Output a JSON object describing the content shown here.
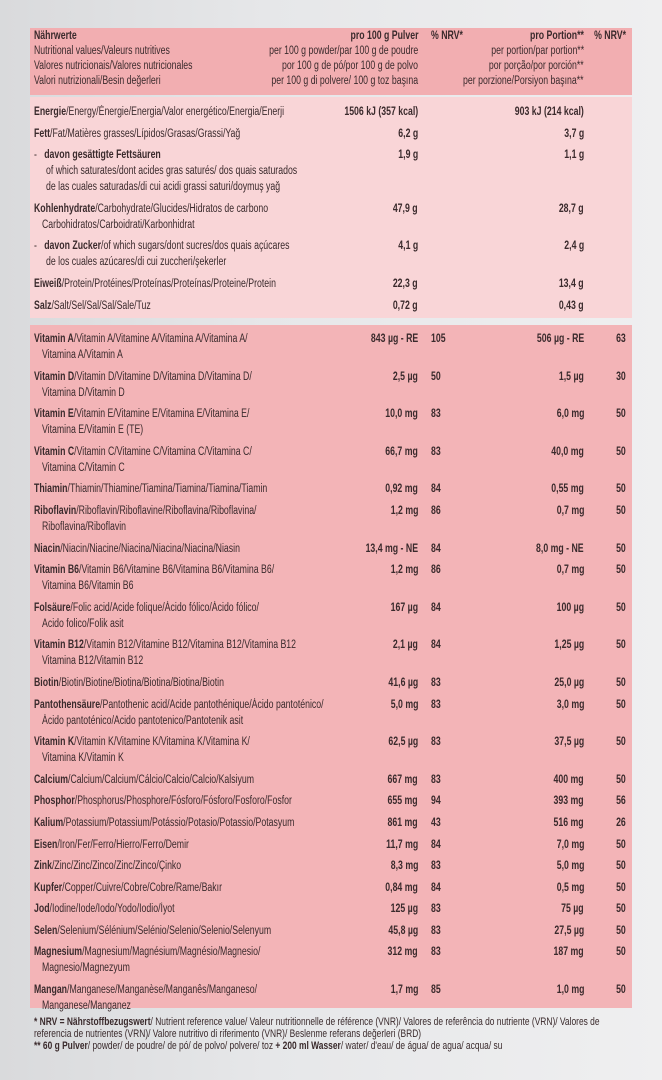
{
  "header": {
    "title": "Nährwerte",
    "col1_title": "pro 100 g Pulver",
    "nrv1_title": "% NRV*",
    "col2_title": "pro Portion**",
    "nrv2_title": "% NRV*",
    "subtitles": [
      {
        "label": "Nutritional values/Valeurs nutritives",
        "col1": "per 100 g powder/par 100 g de poudre",
        "col2": "per portion/par portion**"
      },
      {
        "label": "Valores nutricionais/Valores nutricionales",
        "col1": "por 100 g de pó/por 100 g de polvo",
        "col2": "por porção/por porción**"
      },
      {
        "label": "Valori nutrizionali/Besin değerleri",
        "col1": "per 100 g di polvere/ 100 g toz başına",
        "col2": "per porzione/Porsiyon başına**"
      }
    ]
  },
  "macros": [
    {
      "bold": "Energie",
      "rest": "/Energy/Énergie/Energia/Valor energético/Energia/Enerji",
      "lines": [],
      "v1": "1506 kJ (357 kcal)",
      "n1": "",
      "v2": "903 kJ (214 kcal)",
      "n2": ""
    },
    {
      "bold": "Fett",
      "rest": "/Fat/Matières grasses/Lípidos/Grasas/Grassi/Yağ",
      "lines": [],
      "v1": "6,2 g",
      "n1": "",
      "v2": "3,7 g",
      "n2": ""
    },
    {
      "dash": "-",
      "bold": "davon gesättigte Fettsäuren",
      "rest": "",
      "lines": [
        "of which saturates/dont acides gras saturés/ dos quais saturados",
        "de las cuales saturadas/di cui acidi grassi saturi/doymuş yağ"
      ],
      "v1": "1,9 g",
      "n1": "",
      "v2": "1,1 g",
      "n2": ""
    },
    {
      "bold": "Kohlenhydrate",
      "rest": "/Carbohydrate/Glucides/Hidratos de carbono",
      "lines": [
        "Carbohidratos/Carboidrati/Karbonhidrat"
      ],
      "v1": "47,9 g",
      "n1": "",
      "v2": "28,7 g",
      "n2": ""
    },
    {
      "dash": "-",
      "bold": "davon Zucker",
      "rest": "/of which sugars/dont sucres/dos quais açúcares",
      "lines": [
        "de los cuales azúcares/di cui zuccheri/şekerler"
      ],
      "v1": "4,1 g",
      "n1": "",
      "v2": "2,4 g",
      "n2": ""
    },
    {
      "bold": "Eiweiß",
      "rest": "/Protein/Protéines/Proteínas/Proteínas/Proteine/Protein",
      "lines": [],
      "v1": "22,3 g",
      "n1": "",
      "v2": "13,4 g",
      "n2": ""
    },
    {
      "bold": "Salz",
      "rest": "/Salt/Sel/Sal/Sal/Sale/Tuz",
      "lines": [],
      "v1": "0,72 g",
      "n1": "",
      "v2": "0,43 g",
      "n2": ""
    }
  ],
  "micros": [
    {
      "bold": "Vitamin A",
      "rest": "/Vitamin A/Vitamine A/Vitamina A/Vitamina A/",
      "lines": [
        "Vitamina A/Vitamin A"
      ],
      "v1": "843 µg - RE",
      "n1": "105",
      "v2": "506 µg - RE",
      "n2": "63"
    },
    {
      "bold": "Vitamin D",
      "rest": "/Vitamin D/Vitamine D/Vitamina D/Vitamina D/",
      "lines": [
        "Vitamina D/Vitamin D"
      ],
      "v1": "2,5 µg",
      "n1": "50",
      "v2": "1,5 µg",
      "n2": "30"
    },
    {
      "bold": "Vitamin E",
      "rest": "/Vitamin E/Vitamine E/Vitamina E/Vitamina E/",
      "lines": [
        "Vitamina E/Vitamin E (TE)"
      ],
      "v1": "10,0 mg",
      "n1": "83",
      "v2": "6,0 mg",
      "n2": "50"
    },
    {
      "bold": "Vitamin C",
      "rest": "/Vitamin C/Vitamine C/Vitamina C/Vitamina C/",
      "lines": [
        "Vitamina C/Vitamin C"
      ],
      "v1": "66,7 mg",
      "n1": "83",
      "v2": "40,0 mg",
      "n2": "50"
    },
    {
      "bold": "Thiamin",
      "rest": "/Thiamin/Thiamine/Tiamina/Tiamina/Tiamina/Tiamin",
      "lines": [],
      "v1": "0,92 mg",
      "n1": "84",
      "v2": "0,55 mg",
      "n2": "50"
    },
    {
      "bold": "Riboflavin",
      "rest": "/Riboflavin/Riboflavine/Riboflavina/Riboflavina/",
      "lines": [
        "Riboflavina/Riboflavin"
      ],
      "v1": "1,2 mg",
      "n1": "86",
      "v2": "0,7 mg",
      "n2": "50"
    },
    {
      "bold": "Niacin",
      "rest": "/Niacin/Niacine/Niacina/Niacina/Niacina/Niasin",
      "lines": [],
      "v1": "13,4 mg - NE",
      "n1": "84",
      "v2": "8,0 mg - NE",
      "n2": "50"
    },
    {
      "bold": "Vitamin B6",
      "rest": "/Vitamin B6/Vitamine B6/Vitamina B6/Vitamina B6/",
      "lines": [
        "Vitamina B6/Vitamin B6"
      ],
      "v1": "1,2 mg",
      "n1": "86",
      "v2": "0,7 mg",
      "n2": "50"
    },
    {
      "bold": "Folsäure",
      "rest": "/Folic acid/Acide folique/Ácido fólico/Ácido fólico/",
      "lines": [
        "Acido folico/Folik asit"
      ],
      "v1": "167 µg",
      "n1": "84",
      "v2": "100 µg",
      "n2": "50"
    },
    {
      "bold": "Vitamin B12",
      "rest": "/Vitamin B12/Vitamine B12/Vitamina B12/Vitamina B12",
      "lines": [
        "Vitamina B12/Vitamin B12"
      ],
      "v1": "2,1 µg",
      "n1": "84",
      "v2": "1,25 µg",
      "n2": "50"
    },
    {
      "bold": "Biotin",
      "rest": "/Biotin/Biotine/Biotina/Biotina/Biotina/Biotin",
      "lines": [],
      "v1": "41,6 µg",
      "n1": "83",
      "v2": "25,0 µg",
      "n2": "50"
    },
    {
      "bold": "Pantothensäure",
      "rest": "/Pantothenic acid/Acide pantothénique/Ácido pantoténico/",
      "lines": [
        "Ácido pantoténico/Acido pantotenico/Pantotenik asit"
      ],
      "v1": "5,0 mg",
      "n1": "83",
      "v2": "3,0 mg",
      "n2": "50"
    },
    {
      "bold": "Vitamin K",
      "rest": "/Vitamin K/Vitamine K/Vitamina K/Vitamina K/",
      "lines": [
        "Vitamina K/Vitamin K"
      ],
      "v1": "62,5 µg",
      "n1": "83",
      "v2": "37,5 µg",
      "n2": "50"
    },
    {
      "bold": "Calcium",
      "rest": "/Calcium/Calcium/Cálcio/Calcio/Calcio/Kalsiyum",
      "lines": [],
      "v1": "667 mg",
      "n1": "83",
      "v2": "400 mg",
      "n2": "50"
    },
    {
      "bold": "Phosphor",
      "rest": "/Phosphorus/Phosphore/Fósforo/Fósforo/Fosforo/Fosfor",
      "lines": [],
      "v1": "655 mg",
      "n1": "94",
      "v2": "393 mg",
      "n2": "56"
    },
    {
      "bold": "Kalium",
      "rest": "/Potassium/Potassium/Potássio/Potasio/Potassio/Potasyum",
      "lines": [],
      "v1": "861 mg",
      "n1": "43",
      "v2": "516 mg",
      "n2": "26"
    },
    {
      "bold": "Eisen",
      "rest": "/Iron/Fer/Ferro/Hierro/Ferro/Demir",
      "lines": [],
      "v1": "11,7 mg",
      "n1": "84",
      "v2": "7,0 mg",
      "n2": "50"
    },
    {
      "bold": "Zink",
      "rest": "/Zinc/Zinc/Zinco/Zinc/Zinco/Çinko",
      "lines": [],
      "v1": "8,3 mg",
      "n1": "83",
      "v2": "5,0 mg",
      "n2": "50"
    },
    {
      "bold": "Kupfer",
      "rest": "/Copper/Cuivre/Cobre/Cobre/Rame/Bakır",
      "lines": [],
      "v1": "0,84 mg",
      "n1": "84",
      "v2": "0,5 mg",
      "n2": "50"
    },
    {
      "bold": "Jod",
      "rest": "/Iodine/Iode/Iodo/Yodo/Iodio/İyot",
      "lines": [],
      "v1": "125 µg",
      "n1": "83",
      "v2": "75 µg",
      "n2": "50"
    },
    {
      "bold": "Selen",
      "rest": "/Selenium/Sélénium/Selénio/Selenio/Selenio/Selenyum",
      "lines": [],
      "v1": "45,8 µg",
      "n1": "83",
      "v2": "27,5 µg",
      "n2": "50"
    },
    {
      "bold": "Magnesium",
      "rest": "/Magnesium/Magnésium/Magnésio/Magnesio/",
      "lines": [
        "Magnesio/Magnezyum"
      ],
      "v1": "312 mg",
      "n1": "83",
      "v2": "187 mg",
      "n2": "50"
    },
    {
      "bold": "Mangan",
      "rest": "/Manganese/Manganèse/Manganês/Manganeso/",
      "lines": [
        "Manganese/Manganez"
      ],
      "v1": "1,7 mg",
      "n1": "85",
      "v2": "1,0 mg",
      "n2": "50"
    }
  ],
  "footnotes": {
    "nrv_bold": "* NRV = Nährstoffbezugswert",
    "nrv_rest": "/ Nutrient reference value/ Valeur nutritionnelle de référence (VNR)/ Valores de referência do nutriente (VRN)/ Valores de",
    "nrv_line2": "referencia de nutrientes (VRN)/ Valore nutritivo di riferimento (VNR)/ Beslenme referans değerleri (BRD)",
    "portion_bold1": "** 60 g Pulver",
    "portion_rest1": "/ powder/ de poudre/ de pó/ de polvo/ polvere/ toz ",
    "portion_bold2": "+ 200 ml Wasser",
    "portion_rest2": "/ water/ d'eau/ de água/ de agua/ acqua/ su"
  },
  "colors": {
    "header_band": "#f2aeb1",
    "macro_band": "#f9d5d7",
    "micro_band": "#f3b4b7",
    "text": "#3a2a2c"
  }
}
